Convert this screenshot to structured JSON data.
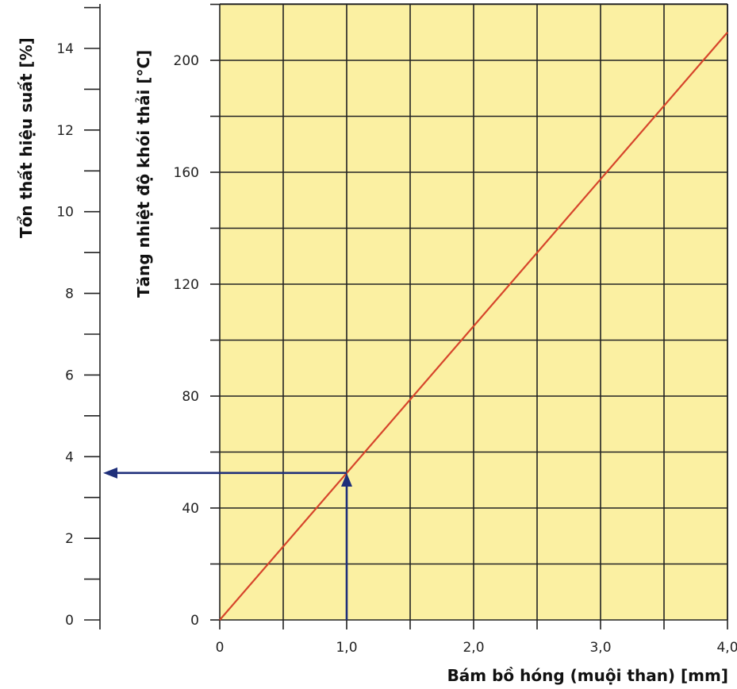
{
  "chart_data": {
    "type": "line",
    "xlabel": "Bám bồ hóng (muội than) [mm]",
    "ylabel": "Tăng nhiệt độ khói thải [°C]",
    "ylabel_secondary": "Tổn thất hiệu suất [%]",
    "x_ticks": [
      "0",
      "1,0",
      "2,0",
      "3,0",
      "4,0"
    ],
    "y_ticks": [
      "0",
      "40",
      "80",
      "120",
      "160",
      "200"
    ],
    "y2_ticks": [
      "0",
      "2",
      "4",
      "6",
      "8",
      "10",
      "12",
      "14"
    ],
    "xlim": [
      0,
      4
    ],
    "ylim": [
      0,
      200
    ],
    "y2lim": [
      0,
      14
    ],
    "grid": true,
    "series": [
      {
        "x": [
          0,
          4.0
        ],
        "y": [
          0,
          210
        ],
        "color": "#d6452b"
      }
    ],
    "annotation": {
      "x": 1.0,
      "y": 52.5,
      "y2": 3.6,
      "color": "#1f2f7a"
    },
    "colors": {
      "plot_background": "#fbf0a2",
      "grid": "#222222",
      "line": "#d6452b",
      "arrow": "#1f2f7a"
    }
  }
}
